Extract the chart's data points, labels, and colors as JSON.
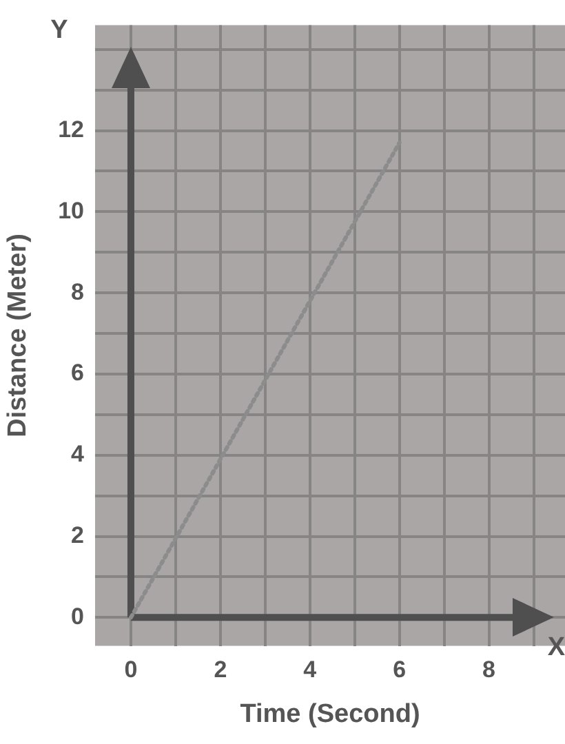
{
  "chart_data": {
    "type": "line",
    "xlabel": "Time (Second)",
    "ylabel": "Distance (Meter)",
    "annotations": [
      "X",
      "Y"
    ],
    "x": [
      0,
      6
    ],
    "series": [
      {
        "color": "#8c8c8c",
        "values": [
          0,
          11.7
        ],
        "line_style": "dotted",
        "marker": "none"
      }
    ],
    "xlim": [
      -0.8,
      9.7
    ],
    "ylim": [
      -0.7,
      14.6
    ],
    "xticks": [
      0,
      {
        "value": 1,
        "label": null
      },
      2,
      {
        "value": 3,
        "label": null
      },
      4,
      {
        "value": 5,
        "label": null
      },
      6,
      {
        "value": 7,
        "label": null
      },
      8,
      {
        "value": 9,
        "label": null
      }
    ],
    "yticks": [
      0,
      {
        "value": 1,
        "label": null
      },
      2,
      {
        "value": 3,
        "label": null
      },
      4,
      {
        "value": 5,
        "label": null
      },
      6,
      {
        "value": 7,
        "label": null
      },
      8,
      {
        "value": 9,
        "label": null
      },
      10,
      {
        "value": 11,
        "label": null
      },
      12,
      {
        "value": 13,
        "label": null
      },
      {
        "value": 14,
        "label": null
      }
    ],
    "grid": true,
    "legend": false
  }
}
